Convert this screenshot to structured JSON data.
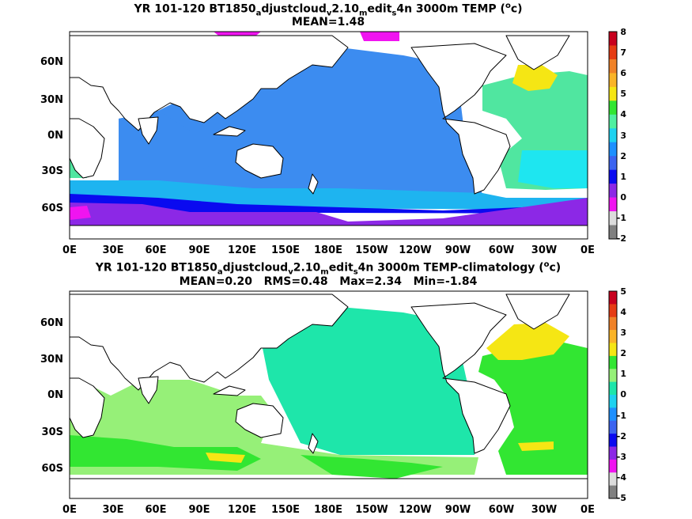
{
  "panel_top": {
    "title_a": "YR 101-120 BT1850",
    "title_sub1": "a",
    "title_b": "djustcloud",
    "title_sub2": "v",
    "title_c": "2.10",
    "title_sub3": "m",
    "title_d": "edit",
    "title_sub4": "s",
    "title_e": "4n 3000m TEMP (",
    "title_sup": "o",
    "title_f": "c)",
    "stats": "MEAN=1.48",
    "colorbar_labels": [
      "8",
      "7",
      "6",
      "5",
      "4",
      "3",
      "2",
      "1",
      "0",
      "-1",
      "-2"
    ],
    "colorbar_colors": [
      "#c8001e",
      "#e63c14",
      "#f08228",
      "#fab428",
      "#f5e614",
      "#32e632",
      "#50f0a0",
      "#1ed2f0",
      "#1e90ff",
      "#3c64f0",
      "#0a0af0",
      "#8c28e6",
      "#f014f0",
      "#dcdcdc",
      "#808080"
    ]
  },
  "panel_bottom": {
    "title_a": "YR 101-120 BT1850",
    "title_sub1": "a",
    "title_b": "djustcloud",
    "title_sub2": "v",
    "title_c": "2.10",
    "title_sub3": "m",
    "title_d": "edit",
    "title_sub4": "s",
    "title_e": "4n 3000m TEMP-climatology (",
    "title_sup": "o",
    "title_f": "c)",
    "stats": "MEAN=0.20   RMS=0.48   Max=2.34   Min=-1.84",
    "colorbar_labels": [
      "5",
      "4",
      "3",
      "2",
      "1",
      "0",
      "-1",
      "-2",
      "-3",
      "-4",
      "-5"
    ],
    "colorbar_colors": [
      "#c8001e",
      "#e63c14",
      "#f08228",
      "#fab428",
      "#f5e614",
      "#32e632",
      "#96f078",
      "#1ee6aa",
      "#1ed2f0",
      "#1e90ff",
      "#3c64f0",
      "#0a0af0",
      "#8c28e6",
      "#f014f0",
      "#dcdcdc",
      "#808080"
    ]
  },
  "axes": {
    "lat_labels": [
      "60N",
      "30N",
      "0N",
      "30S",
      "60S"
    ],
    "lon_labels": [
      "0E",
      "30E",
      "60E",
      "90E",
      "120E",
      "150E",
      "180E",
      "150W",
      "120W",
      "90W",
      "60W",
      "30W",
      "0E"
    ]
  },
  "colors": {
    "top_ocean": "#3c8cf0",
    "top_south": "#1eb4f0",
    "top_deep": "#0a0af0",
    "top_purple": "#8c28e6",
    "top_magenta": "#f014f0",
    "top_green": "#50e6a0",
    "top_cyan": "#1ee6f0",
    "top_yellow": "#f5e614",
    "bottom_ocean": "#1ee6aa",
    "bottom_light": "#96f078",
    "bottom_green": "#32e632",
    "bottom_yellow": "#f5e614",
    "land": "#ffffff"
  }
}
